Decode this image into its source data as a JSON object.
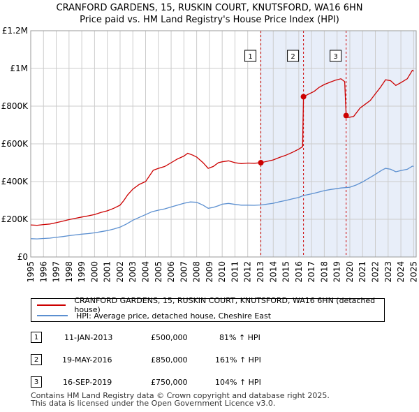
{
  "header": {
    "title_line1": "CRANFORD GARDENS, 15, RUSKIN COURT, KNUTSFORD, WA16 6HN",
    "title_line2": "Price paid vs. HM Land Registry's House Price Index (HPI)"
  },
  "colors": {
    "property": "#cc0000",
    "hpi": "#5b8fd0",
    "shade": "#e8eef9",
    "vline": "#cc0000",
    "grid": "#cccccc"
  },
  "chart_data": {
    "type": "line",
    "title": "Price paid vs. HM Land Registry's House Price Index (HPI)",
    "xlabel": "",
    "ylabel": "",
    "xlim": [
      1995,
      2025.2
    ],
    "ylim": [
      0,
      1200000
    ],
    "x_ticks": [
      1995,
      1996,
      1997,
      1998,
      1999,
      2000,
      2001,
      2002,
      2003,
      2004,
      2005,
      2006,
      2007,
      2008,
      2009,
      2010,
      2011,
      2012,
      2013,
      2014,
      2015,
      2016,
      2017,
      2018,
      2019,
      2020,
      2021,
      2022,
      2023,
      2024,
      2025
    ],
    "y_ticks": [
      0,
      200000,
      400000,
      600000,
      800000,
      1000000,
      1200000
    ],
    "y_tick_labels": [
      "£0",
      "£200K",
      "£400K",
      "£600K",
      "£800K",
      "£1M",
      "£1.2M"
    ],
    "grid": true,
    "shaded_from": 2013.03,
    "series": [
      {
        "name": "CRANFORD GARDENS, 15, RUSKIN COURT, KNUTSFORD, WA16 6HN (detached house)",
        "color": "#cc0000",
        "points": [
          [
            1995.0,
            170000
          ],
          [
            1995.5,
            168000
          ],
          [
            1996.0,
            172000
          ],
          [
            1996.5,
            175000
          ],
          [
            1997.0,
            182000
          ],
          [
            1997.5,
            190000
          ],
          [
            1998.0,
            198000
          ],
          [
            1998.5,
            205000
          ],
          [
            1999.0,
            212000
          ],
          [
            1999.5,
            218000
          ],
          [
            2000.0,
            225000
          ],
          [
            2000.5,
            236000
          ],
          [
            2001.0,
            245000
          ],
          [
            2001.5,
            258000
          ],
          [
            2002.0,
            275000
          ],
          [
            2002.3,
            300000
          ],
          [
            2002.6,
            330000
          ],
          [
            2003.0,
            360000
          ],
          [
            2003.5,
            385000
          ],
          [
            2004.0,
            400000
          ],
          [
            2004.3,
            430000
          ],
          [
            2004.6,
            460000
          ],
          [
            2005.0,
            470000
          ],
          [
            2005.5,
            480000
          ],
          [
            2006.0,
            500000
          ],
          [
            2006.5,
            520000
          ],
          [
            2007.0,
            535000
          ],
          [
            2007.3,
            550000
          ],
          [
            2007.7,
            540000
          ],
          [
            2008.0,
            530000
          ],
          [
            2008.5,
            500000
          ],
          [
            2008.9,
            470000
          ],
          [
            2009.3,
            480000
          ],
          [
            2009.7,
            500000
          ],
          [
            2010.0,
            505000
          ],
          [
            2010.5,
            510000
          ],
          [
            2011.0,
            500000
          ],
          [
            2011.5,
            495000
          ],
          [
            2012.0,
            498000
          ],
          [
            2012.5,
            497000
          ],
          [
            2013.03,
            500000
          ],
          [
            2013.5,
            507000
          ],
          [
            2014.0,
            515000
          ],
          [
            2014.5,
            528000
          ],
          [
            2015.0,
            540000
          ],
          [
            2015.5,
            555000
          ],
          [
            2016.0,
            572000
          ],
          [
            2016.3,
            585000
          ],
          [
            2016.37,
            850000
          ],
          [
            2016.8,
            865000
          ],
          [
            2017.2,
            878000
          ],
          [
            2017.6,
            900000
          ],
          [
            2018.0,
            915000
          ],
          [
            2018.5,
            928000
          ],
          [
            2018.9,
            938000
          ],
          [
            2019.3,
            945000
          ],
          [
            2019.6,
            930000
          ],
          [
            2019.71,
            750000
          ],
          [
            2019.9,
            740000
          ],
          [
            2020.3,
            745000
          ],
          [
            2020.8,
            790000
          ],
          [
            2021.2,
            810000
          ],
          [
            2021.6,
            830000
          ],
          [
            2022.0,
            865000
          ],
          [
            2022.4,
            900000
          ],
          [
            2022.8,
            940000
          ],
          [
            2023.2,
            935000
          ],
          [
            2023.6,
            910000
          ],
          [
            2024.0,
            925000
          ],
          [
            2024.5,
            945000
          ],
          [
            2024.9,
            990000
          ],
          [
            2025.0,
            985000
          ]
        ]
      },
      {
        "name": "HPI: Average price, detached house, Cheshire East",
        "color": "#5b8fd0",
        "points": [
          [
            1995.0,
            97000
          ],
          [
            1995.5,
            96000
          ],
          [
            1996.0,
            98000
          ],
          [
            1996.5,
            100000
          ],
          [
            1997.0,
            104000
          ],
          [
            1997.5,
            108000
          ],
          [
            1998.0,
            113000
          ],
          [
            1998.5,
            117000
          ],
          [
            1999.0,
            121000
          ],
          [
            1999.5,
            124000
          ],
          [
            2000.0,
            128000
          ],
          [
            2000.5,
            134000
          ],
          [
            2001.0,
            140000
          ],
          [
            2001.5,
            148000
          ],
          [
            2002.0,
            158000
          ],
          [
            2002.5,
            175000
          ],
          [
            2003.0,
            195000
          ],
          [
            2003.5,
            210000
          ],
          [
            2004.0,
            225000
          ],
          [
            2004.5,
            240000
          ],
          [
            2005.0,
            248000
          ],
          [
            2005.5,
            255000
          ],
          [
            2006.0,
            265000
          ],
          [
            2006.5,
            275000
          ],
          [
            2007.0,
            285000
          ],
          [
            2007.5,
            292000
          ],
          [
            2008.0,
            290000
          ],
          [
            2008.5,
            275000
          ],
          [
            2008.9,
            258000
          ],
          [
            2009.3,
            263000
          ],
          [
            2009.7,
            272000
          ],
          [
            2010.0,
            280000
          ],
          [
            2010.5,
            284000
          ],
          [
            2011.0,
            279000
          ],
          [
            2011.5,
            275000
          ],
          [
            2012.0,
            275000
          ],
          [
            2012.5,
            274000
          ],
          [
            2013.03,
            276000
          ],
          [
            2013.5,
            280000
          ],
          [
            2014.0,
            285000
          ],
          [
            2014.5,
            293000
          ],
          [
            2015.0,
            300000
          ],
          [
            2015.5,
            308000
          ],
          [
            2016.0,
            316000
          ],
          [
            2016.37,
            326000
          ],
          [
            2016.8,
            332000
          ],
          [
            2017.2,
            338000
          ],
          [
            2017.6,
            345000
          ],
          [
            2018.0,
            352000
          ],
          [
            2018.5,
            358000
          ],
          [
            2018.9,
            362000
          ],
          [
            2019.3,
            366000
          ],
          [
            2019.71,
            368000
          ],
          [
            2020.0,
            370000
          ],
          [
            2020.5,
            382000
          ],
          [
            2021.0,
            398000
          ],
          [
            2021.5,
            418000
          ],
          [
            2022.0,
            438000
          ],
          [
            2022.5,
            460000
          ],
          [
            2022.8,
            470000
          ],
          [
            2023.2,
            465000
          ],
          [
            2023.6,
            452000
          ],
          [
            2024.0,
            458000
          ],
          [
            2024.5,
            465000
          ],
          [
            2024.9,
            482000
          ],
          [
            2025.0,
            480000
          ]
        ]
      }
    ],
    "sales": [
      {
        "label": "1",
        "x": 2013.03,
        "value": 500000
      },
      {
        "label": "2",
        "x": 2016.37,
        "value": 850000
      },
      {
        "label": "3",
        "x": 2019.71,
        "value": 750000
      }
    ]
  },
  "legend": {
    "property_label": "CRANFORD GARDENS, 15, RUSKIN COURT, KNUTSFORD, WA16 6HN (detached house)",
    "hpi_label": "HPI: Average price, detached house, Cheshire East"
  },
  "transactions": [
    {
      "num": "1",
      "date": "11-JAN-2013",
      "price": "£500,000",
      "hpi": "81% ↑ HPI"
    },
    {
      "num": "2",
      "date": "19-MAY-2016",
      "price": "£850,000",
      "hpi": "161% ↑ HPI"
    },
    {
      "num": "3",
      "date": "16-SEP-2019",
      "price": "£750,000",
      "hpi": "104% ↑ HPI"
    }
  ],
  "footer": {
    "line1": "Contains HM Land Registry data © Crown copyright and database right 2025.",
    "line2": "This data is licensed under the Open Government Licence v3.0."
  }
}
